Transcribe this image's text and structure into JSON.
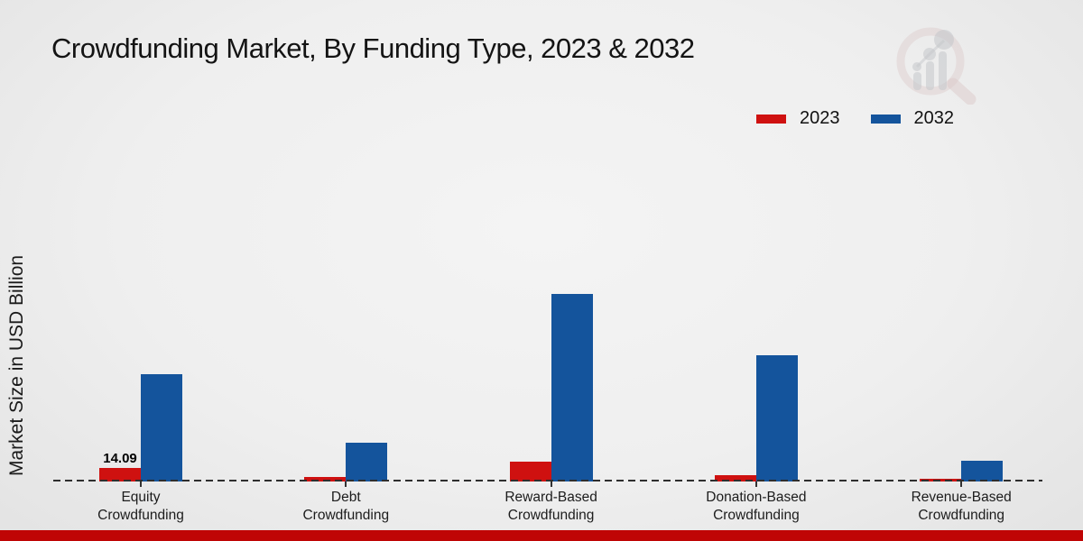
{
  "title": "Crowdfunding Market, By Funding Type, 2023 & 2032",
  "branding": {
    "watermark": "market-research-future-logo",
    "bottom_strip_color": "#bf0505"
  },
  "chart_data": {
    "type": "bar",
    "title": "Crowdfunding Market, By Funding Type, 2023 & 2032",
    "xlabel": "",
    "ylabel": "Market Size in USD Billion",
    "categories": [
      "Equity Crowdfunding",
      "Debt Crowdfunding",
      "Reward-Based Crowdfunding",
      "Donation-Based Crowdfunding",
      "Revenue-Based Crowdfunding"
    ],
    "category_label_lines": [
      [
        "Equity",
        "Crowdfunding"
      ],
      [
        "Debt",
        "Crowdfunding"
      ],
      [
        "Reward-Based",
        "Crowdfunding"
      ],
      [
        "Donation-Based",
        "Crowdfunding"
      ],
      [
        "Revenue-Based",
        "Crowdfunding"
      ]
    ],
    "series": [
      {
        "name": "2023",
        "color": "#cf1110",
        "values": [
          14.09,
          5.0,
          20.5,
          7.0,
          2.5
        ]
      },
      {
        "name": "2032",
        "color": "#14549c",
        "values": [
          112.0,
          40.0,
          195.0,
          131.5,
          22.0
        ]
      }
    ],
    "annotations": [
      {
        "series": "2023",
        "category_index": 0,
        "text": "14.09"
      }
    ],
    "ylim": [
      0,
      210
    ],
    "grid": false,
    "y_axis_ticks_visible": false,
    "baseline_style": "dashed",
    "legend_position": "top-right"
  }
}
